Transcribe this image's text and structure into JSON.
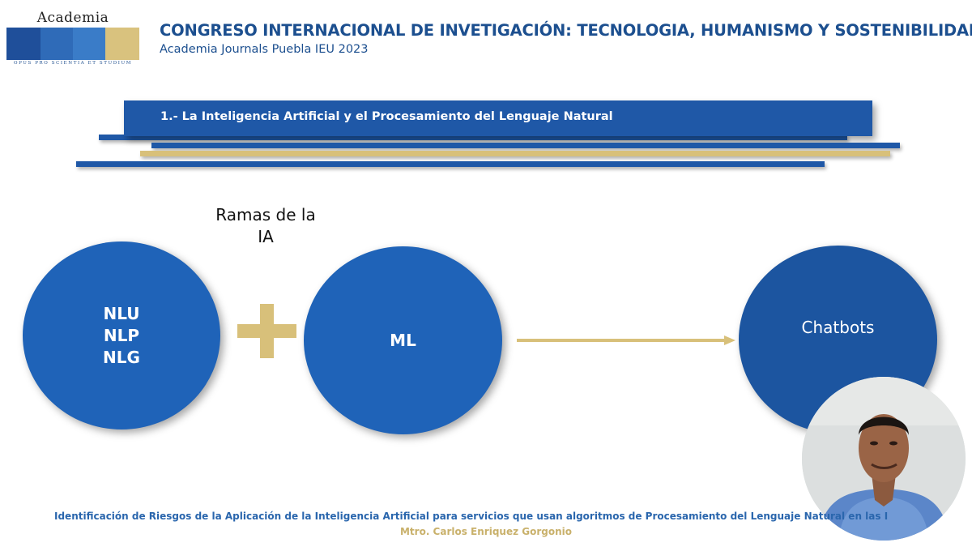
{
  "logo": {
    "name": "Academia Journals",
    "motto": "OPUS PRO SCIENTIA ET STUDIUM",
    "band_colors": [
      "#1f4f9a",
      "#2f6bb8",
      "#3a7cc8",
      "#d9c27e"
    ]
  },
  "header": {
    "title": "CONGRESO INTERNACIONAL DE INVETIGACIÓN: TECNOLOGIA, HUMANISMO Y SOSTENIBILIDAD",
    "subtitle": "Academia Journals Puebla IEU 2023"
  },
  "banner": {
    "text": "1.- La Inteligencia Artificial y el Procesamiento del Lenguaje Natural"
  },
  "diagram": {
    "branch_label_line1": "Ramas de la",
    "branch_label_line2": "IA",
    "circle1_lines": [
      "NLU",
      "NLP",
      "NLG"
    ],
    "circle2_label": "ML",
    "circle3_label": "Chatbots",
    "plus_icon": "plus-icon",
    "arrow_icon": "arrow-right-icon"
  },
  "footer": {
    "line1": "Identificación de Riesgos de la Aplicación de la Inteligencia Artificial para servicios que usan algoritmos de Procesamiento del Lenguaje Natural en las Insti",
    "line2": "Mtro. Carlos Enriquez Gorgonio"
  },
  "colors": {
    "primary_blue": "#1f63b8",
    "dark_blue": "#1c4f8f",
    "gold": "#d8c07a"
  }
}
